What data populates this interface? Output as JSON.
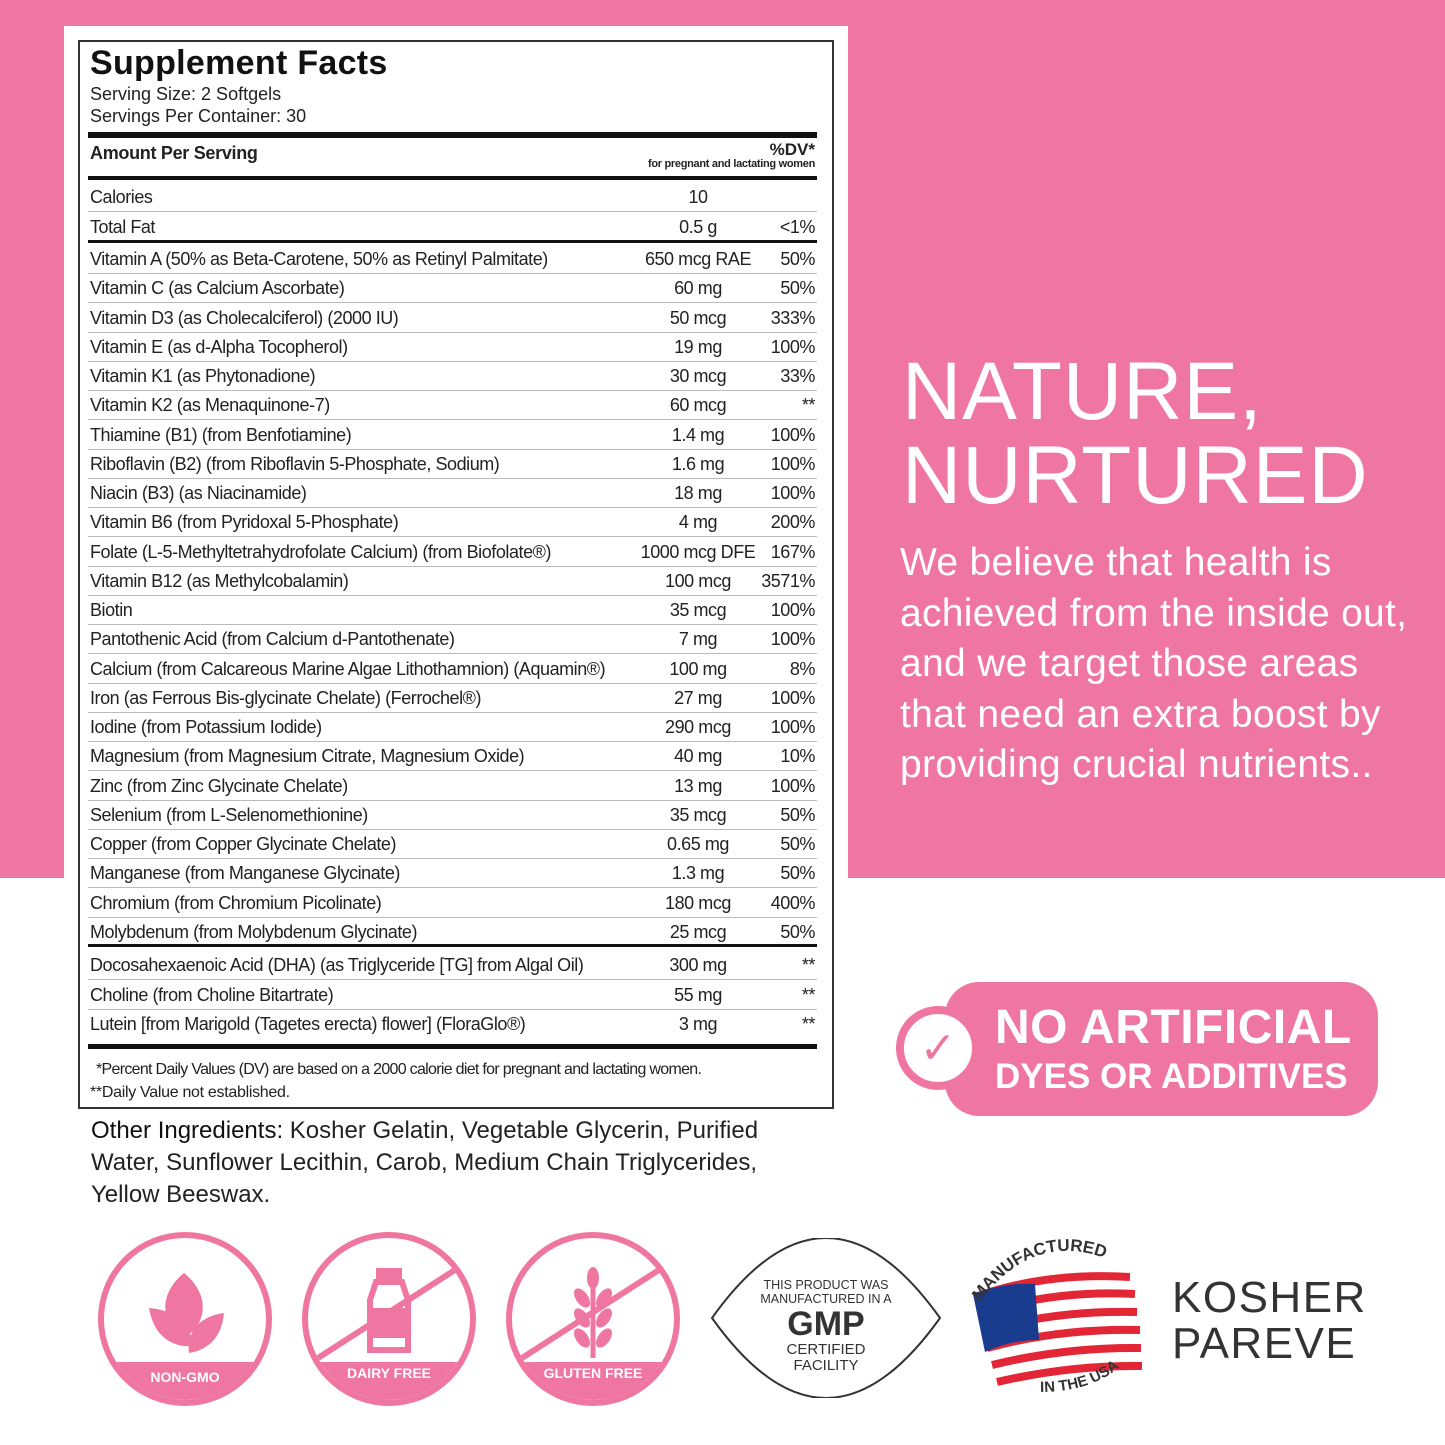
{
  "colors": {
    "brand_pink": "#ef76a0"
  },
  "facts": {
    "title": "Supplement Facts",
    "serving_size": "Serving Size: 2 Softgels",
    "servings_per_container": "Servings Per Container: 30",
    "amount_header": "Amount Per Serving",
    "dv_header": "%DV*",
    "dv_subheader": "for pregnant and lactating women",
    "top_rows": [
      [
        "Calories",
        "10",
        ""
      ],
      [
        "Total Fat",
        "0.5 g",
        "<1%"
      ]
    ],
    "vitamin_rows": [
      [
        "Vitamin A (50% as Beta-Carotene, 50% as Retinyl Palmitate)",
        "650 mcg RAE",
        "50%"
      ],
      [
        "Vitamin C (as Calcium Ascorbate)",
        "60 mg",
        "50%"
      ],
      [
        "Vitamin D3 (as Cholecalciferol) (2000 IU)",
        "50 mcg",
        "333%"
      ],
      [
        "Vitamin E (as d-Alpha Tocopherol)",
        "19 mg",
        "100%"
      ],
      [
        "Vitamin K1 (as Phytonadione)",
        "30 mcg",
        "33%"
      ],
      [
        "Vitamin K2 (as Menaquinone-7)",
        "60 mcg",
        "**"
      ],
      [
        "Thiamine (B1) (from Benfotiamine)",
        "1.4 mg",
        "100%"
      ],
      [
        "Riboflavin (B2) (from Riboflavin 5-Phosphate, Sodium)",
        "1.6 mg",
        "100%"
      ],
      [
        "Niacin (B3) (as Niacinamide)",
        "18 mg",
        "100%"
      ],
      [
        "Vitamin B6 (from Pyridoxal 5-Phosphate)",
        "4 mg",
        "200%"
      ],
      [
        "Folate (L-5-Methyltetrahydrofolate Calcium) (from Biofolate®)",
        "1000 mcg DFE",
        "167%"
      ],
      [
        "Vitamin B12 (as Methylcobalamin)",
        "100 mcg",
        "3571%"
      ],
      [
        "Biotin",
        "35 mcg",
        "100%"
      ],
      [
        "Pantothenic Acid (from Calcium d-Pantothenate)",
        "7 mg",
        "100%"
      ],
      [
        "Calcium (from Calcareous Marine Algae Lithothamnion) (Aquamin®)",
        "100 mg",
        "8%"
      ],
      [
        "Iron (as Ferrous Bis-glycinate Chelate) (Ferrochel®)",
        "27 mg",
        "100%"
      ],
      [
        "Iodine (from Potassium Iodide)",
        "290 mcg",
        "100%"
      ],
      [
        "Magnesium (from Magnesium Citrate, Magnesium Oxide)",
        "40 mg",
        "10%"
      ],
      [
        "Zinc (from Zinc Glycinate Chelate)",
        "13 mg",
        "100%"
      ],
      [
        "Selenium (from L-Selenomethionine)",
        "35 mcg",
        "50%"
      ],
      [
        "Copper (from Copper Glycinate Chelate)",
        "0.65 mg",
        "50%"
      ],
      [
        "Manganese (from Manganese Glycinate)",
        "1.3 mg",
        "50%"
      ],
      [
        "Chromium (from Chromium Picolinate)",
        "180 mcg",
        "400%"
      ],
      [
        "Molybdenum (from Molybdenum Glycinate)",
        "25 mcg",
        "50%"
      ]
    ],
    "other_rows": [
      [
        "Docosahexaenoic Acid (DHA) (as Triglyceride [TG] from Algal Oil)",
        "300 mg",
        "**"
      ],
      [
        "Choline (from Choline Bitartrate)",
        "55 mg",
        "**"
      ],
      [
        "Lutein [from Marigold (Tagetes erecta) flower] (FloraGlo®)",
        "3 mg",
        "**"
      ]
    ],
    "footnote1": "*Percent Daily Values (DV) are based on a 2000 calorie diet for pregnant and lactating women.",
    "footnote2": "**Daily Value not established."
  },
  "other_ingredients": {
    "label": "Other Ingredients:",
    "text": " Kosher Gelatin, Vegetable Glycerin, Purified Water, Sunflower Lecithin, Carob, Medium Chain Triglycerides, Yellow Beeswax."
  },
  "headline": {
    "line1": "NATURE,",
    "line2": "NURTURED"
  },
  "body_text": "We believe that health is achieved from the inside out, and we target those areas that need an extra boost by providing crucial nutrients..",
  "badge": {
    "line1": "NO ARTIFICIAL",
    "line2": "DYES OR ADDITIVES",
    "icon": "check-icon"
  },
  "seals": [
    {
      "label": "NON-GMO",
      "icon": "leaf-icon"
    },
    {
      "label": "DAIRY FREE",
      "icon": "milk-bottle-icon"
    },
    {
      "label": "GLUTEN FREE",
      "icon": "wheat-icon"
    }
  ],
  "gmp": {
    "line1": "THIS PRODUCT WAS",
    "line2": "MANUFACTURED IN A",
    "big": "GMP",
    "line3": "CERTIFIED",
    "line4": "FACILITY"
  },
  "usa": {
    "top": "MANUFACTURED",
    "bottom": "IN THE USA"
  },
  "kosher": {
    "line1": "KOSHER",
    "line2": "PAREVE"
  }
}
